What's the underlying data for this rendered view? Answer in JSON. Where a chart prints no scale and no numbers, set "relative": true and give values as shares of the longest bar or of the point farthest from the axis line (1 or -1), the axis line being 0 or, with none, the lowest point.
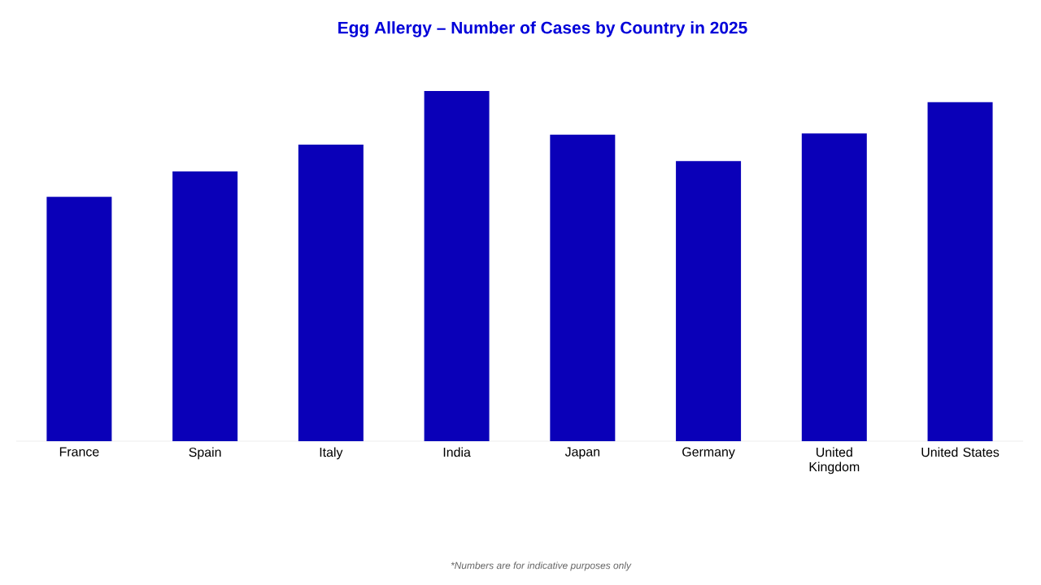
{
  "chart_data": {
    "type": "bar",
    "title": "Egg Allergy – Number of Cases by Country in 2025",
    "categories": [
      "France",
      "Spain",
      "Italy",
      "India",
      "Japan",
      "Germany",
      "United Kingdom",
      "United States"
    ],
    "values": [
      0.698,
      0.77,
      0.847,
      1,
      0.875,
      0.8,
      0.879,
      0.968
    ],
    "color": "#0a00b8",
    "relative": true,
    "annotations": [
      "*Numbers are for indicative purposes only"
    ]
  }
}
